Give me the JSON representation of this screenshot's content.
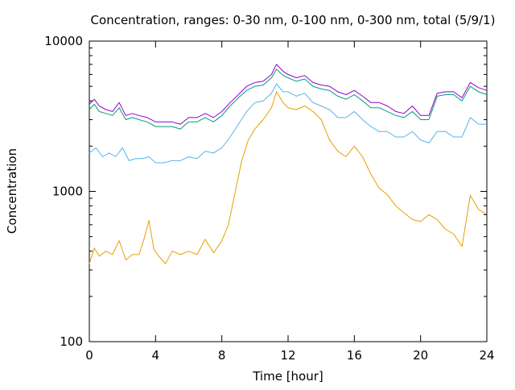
{
  "chart_data": {
    "type": "line",
    "title": "Concentration, ranges: 0-30 nm, 0-100 nm, 0-300 nm, total (5/9/1)",
    "xlabel": "Time [hour]",
    "ylabel": "Concentration",
    "xlim": [
      0,
      24
    ],
    "ylim": [
      100,
      10000
    ],
    "yscale": "log",
    "grid": false,
    "legend": "none",
    "x_ticks": [
      0,
      4,
      8,
      12,
      16,
      20,
      24
    ],
    "x_tick_labels": [
      "0",
      "4",
      "8",
      "12",
      "16",
      "20",
      "24"
    ],
    "y_ticks": [
      100,
      1000,
      10000
    ],
    "y_tick_labels": [
      "100",
      "1000",
      "10000"
    ],
    "series": [
      {
        "color": "#e69f00",
        "x": [
          0,
          0.3,
          0.6,
          1,
          1.4,
          1.8,
          2.2,
          2.6,
          3,
          3.3,
          3.6,
          3.9,
          4.2,
          4.6,
          5,
          5.5,
          6,
          6.5,
          7,
          7.5,
          8,
          8.4,
          8.8,
          9.2,
          9.6,
          10,
          10.5,
          11,
          11.3,
          11.7,
          12,
          12.5,
          13,
          13.5,
          14,
          14.5,
          15,
          15.5,
          16,
          16.5,
          17,
          17.5,
          18,
          18.5,
          19,
          19.5,
          20,
          20.5,
          21,
          21.5,
          22,
          22.5,
          23,
          23.5,
          24
        ],
        "y": [
          330,
          420,
          370,
          400,
          380,
          470,
          350,
          380,
          380,
          480,
          640,
          410,
          370,
          330,
          400,
          380,
          400,
          380,
          480,
          390,
          470,
          600,
          980,
          1600,
          2200,
          2600,
          3000,
          3600,
          4600,
          3900,
          3600,
          3500,
          3700,
          3400,
          3000,
          2200,
          1850,
          1700,
          2000,
          1700,
          1300,
          1050,
          950,
          800,
          720,
          650,
          630,
          700,
          650,
          560,
          520,
          430,
          940,
          760,
          700
        ]
      },
      {
        "color": "#56b4e9",
        "x": [
          0,
          0.4,
          0.8,
          1.2,
          1.6,
          2,
          2.4,
          2.8,
          3.2,
          3.6,
          4,
          4.5,
          5,
          5.5,
          6,
          6.5,
          7,
          7.5,
          8,
          8.5,
          9,
          9.5,
          10,
          10.5,
          11,
          11.3,
          11.7,
          12,
          12.5,
          13,
          13.5,
          14,
          14.5,
          15,
          15.5,
          16,
          16.5,
          17,
          17.5,
          18,
          18.5,
          19,
          19.5,
          20,
          20.5,
          21,
          21.5,
          22,
          22.5,
          23,
          23.5,
          24
        ],
        "y": [
          1800,
          1950,
          1700,
          1800,
          1700,
          1950,
          1600,
          1650,
          1650,
          1700,
          1550,
          1550,
          1600,
          1600,
          1700,
          1650,
          1850,
          1800,
          1950,
          2300,
          2800,
          3400,
          3900,
          4000,
          4500,
          5200,
          4600,
          4600,
          4300,
          4500,
          3900,
          3700,
          3500,
          3100,
          3100,
          3400,
          3000,
          2700,
          2500,
          2500,
          2300,
          2300,
          2500,
          2200,
          2100,
          2500,
          2500,
          2300,
          2300,
          3100,
          2800,
          2800
        ]
      },
      {
        "color": "#009e73",
        "x": [
          0,
          0.3,
          0.6,
          1,
          1.4,
          1.8,
          2.2,
          2.6,
          3,
          3.5,
          4,
          4.5,
          5,
          5.5,
          6,
          6.5,
          7,
          7.5,
          8,
          8.5,
          9,
          9.5,
          10,
          10.5,
          11,
          11.3,
          11.7,
          12,
          12.5,
          13,
          13.5,
          14,
          14.5,
          15,
          15.5,
          16,
          16.5,
          17,
          17.5,
          18,
          18.5,
          19,
          19.5,
          20,
          20.5,
          21,
          21.5,
          22,
          22.5,
          23,
          23.5,
          24
        ],
        "y": [
          3500,
          3800,
          3400,
          3300,
          3200,
          3600,
          3000,
          3100,
          3000,
          2900,
          2700,
          2700,
          2700,
          2600,
          2900,
          2900,
          3100,
          2900,
          3200,
          3700,
          4200,
          4700,
          5000,
          5100,
          5700,
          6500,
          5900,
          5700,
          5400,
          5600,
          5000,
          4800,
          4700,
          4300,
          4100,
          4400,
          4000,
          3600,
          3600,
          3400,
          3200,
          3100,
          3400,
          3000,
          3000,
          4300,
          4400,
          4400,
          4000,
          5000,
          4600,
          4400
        ]
      },
      {
        "color": "#9400d3",
        "x": [
          0,
          0.3,
          0.6,
          1,
          1.4,
          1.8,
          2.2,
          2.6,
          3,
          3.5,
          4,
          4.5,
          5,
          5.5,
          6,
          6.5,
          7,
          7.5,
          8,
          8.5,
          9,
          9.5,
          10,
          10.5,
          11,
          11.3,
          11.7,
          12,
          12.5,
          13,
          13.5,
          14,
          14.5,
          15,
          15.5,
          16,
          16.5,
          17,
          17.5,
          18,
          18.5,
          19,
          19.5,
          20,
          20.5,
          21,
          21.5,
          22,
          22.5,
          23,
          23.5,
          24
        ],
        "y": [
          3800,
          4100,
          3700,
          3500,
          3400,
          3900,
          3200,
          3300,
          3200,
          3100,
          2900,
          2900,
          2900,
          2800,
          3100,
          3100,
          3300,
          3100,
          3400,
          3900,
          4400,
          5000,
          5300,
          5400,
          6000,
          7000,
          6300,
          6000,
          5700,
          5900,
          5300,
          5100,
          5000,
          4600,
          4400,
          4700,
          4300,
          3900,
          3900,
          3700,
          3400,
          3300,
          3700,
          3200,
          3200,
          4500,
          4600,
          4600,
          4200,
          5300,
          4900,
          4700
        ]
      }
    ]
  }
}
